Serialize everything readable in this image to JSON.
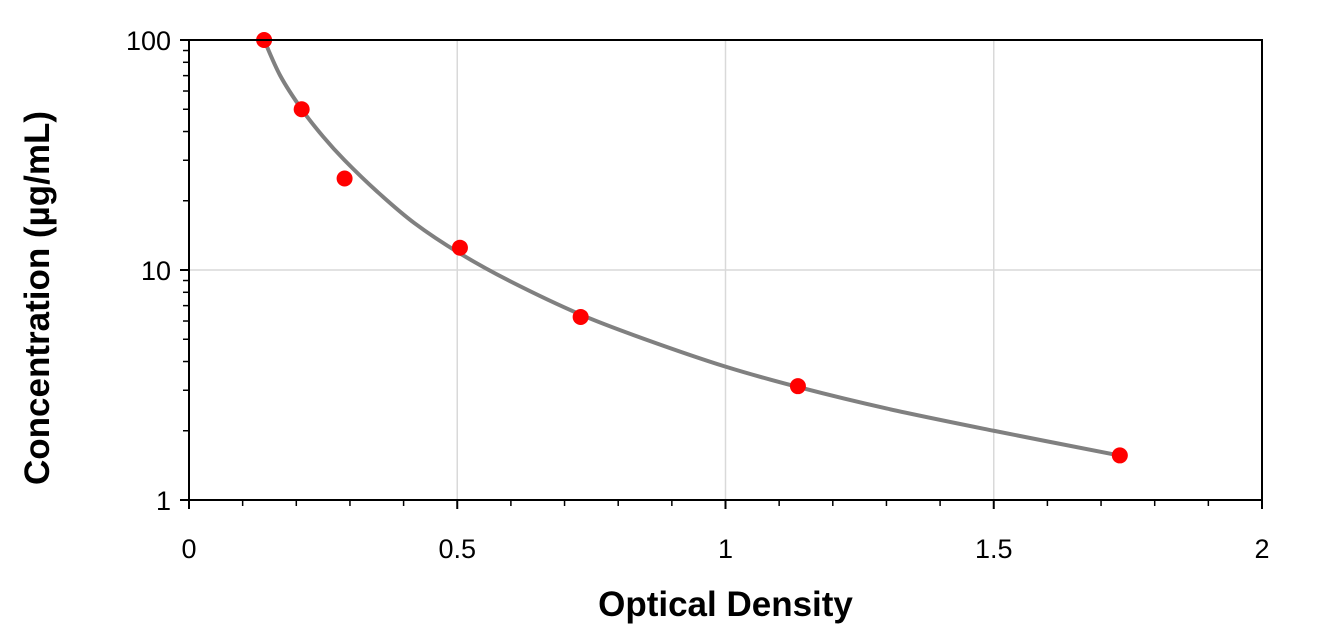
{
  "chart_data": {
    "type": "scatter",
    "title": "",
    "xlabel": "Optical Density",
    "ylabel": "Concentration (µg/mL)",
    "x_scale": "linear",
    "y_scale": "log",
    "xlim": [
      0,
      2
    ],
    "ylim": [
      1,
      100
    ],
    "x_ticks": [
      "0",
      "0.5",
      "1",
      "1.5",
      "2"
    ],
    "y_ticks": [
      "1",
      "10",
      "100"
    ],
    "grid": true,
    "legend": "none",
    "series": [
      {
        "kind": "points",
        "color": "#ff0000",
        "x": [
          0.14,
          0.21,
          0.29,
          0.505,
          0.73,
          1.135,
          1.735
        ],
        "y": [
          100,
          50,
          25,
          12.5,
          6.25,
          3.125,
          1.5625
        ]
      },
      {
        "kind": "fit-curve",
        "color": "#808080",
        "x": [
          0.14,
          0.17,
          0.21,
          0.25,
          0.29,
          0.35,
          0.42,
          0.505,
          0.6,
          0.73,
          0.85,
          1.0,
          1.135,
          1.3,
          1.5,
          1.735
        ],
        "y": [
          100,
          70,
          50,
          38,
          30,
          22,
          16,
          11.8,
          8.9,
          6.4,
          5.0,
          3.8,
          3.1,
          2.5,
          2.0,
          1.56
        ]
      }
    ]
  }
}
